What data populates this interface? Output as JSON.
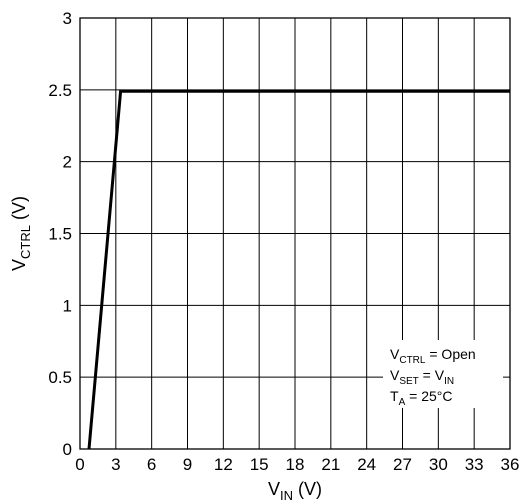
{
  "chart_data": {
    "type": "line",
    "title": "",
    "x_axis": {
      "label_main": "V",
      "label_sub": "IN",
      "label_unit": "(V)",
      "range": [
        0,
        36
      ],
      "ticks": [
        0,
        3,
        6,
        9,
        12,
        15,
        18,
        21,
        24,
        27,
        30,
        33,
        36
      ]
    },
    "y_axis": {
      "label_main": "V",
      "label_sub": "CTRL",
      "label_unit": "(V)",
      "range": [
        0,
        3
      ],
      "ticks": [
        0,
        0.5,
        1,
        1.5,
        2,
        2.5,
        3
      ]
    },
    "grid": true,
    "series": [
      {
        "x": [
          0.75,
          3.4,
          36
        ],
        "y": [
          0,
          2.49,
          2.49
        ]
      }
    ],
    "annotation": [
      {
        "main": "V",
        "sub": "CTRL",
        "rest": " = Open"
      },
      {
        "main": "V",
        "sub": "SET",
        "rest": " = V",
        "sub2": "IN"
      },
      {
        "main": "T",
        "sub": "A",
        "rest": " = 25°C"
      }
    ]
  }
}
